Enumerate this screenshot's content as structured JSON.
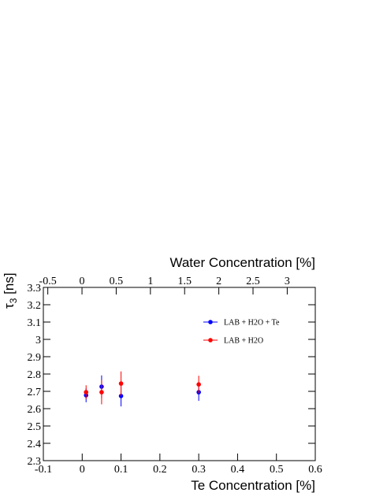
{
  "chart_data": {
    "type": "scatter",
    "xlabel": "Te Concentration [%]",
    "x2label": "Water Concentration [%]",
    "ylabel_symbol": "τ",
    "ylabel_sub": "3",
    "ylabel_unit": "[ns]",
    "xlim": [
      -0.1,
      0.6
    ],
    "xticks": [
      -0.1,
      0,
      0.1,
      0.2,
      0.3,
      0.4,
      0.5,
      0.6
    ],
    "x2lim": [
      -0.565,
      3.41
    ],
    "x2ticks": [
      -0.5,
      0,
      0.5,
      1,
      1.5,
      2,
      2.5,
      3
    ],
    "ylim": [
      2.3,
      3.3
    ],
    "yticks": [
      2.3,
      2.4,
      2.5,
      2.6,
      2.7,
      2.8,
      2.9,
      3,
      3.1,
      3.2,
      3.3
    ],
    "legend": "right",
    "series": [
      {
        "name": "LAB + H2O + Te",
        "color": "#0000ff",
        "x": [
          0.01,
          0.05,
          0.1,
          0.3
        ],
        "values": [
          2.677,
          2.727,
          2.673,
          2.695
        ],
        "errors": [
          0.04,
          0.065,
          0.06,
          0.05
        ]
      },
      {
        "name": "LAB + H2O",
        "color": "#ff0000",
        "x": [
          0.01,
          0.05,
          0.1,
          0.3
        ],
        "values": [
          2.695,
          2.695,
          2.745,
          2.74
        ],
        "errors": [
          0.04,
          0.07,
          0.07,
          0.05
        ]
      }
    ]
  }
}
